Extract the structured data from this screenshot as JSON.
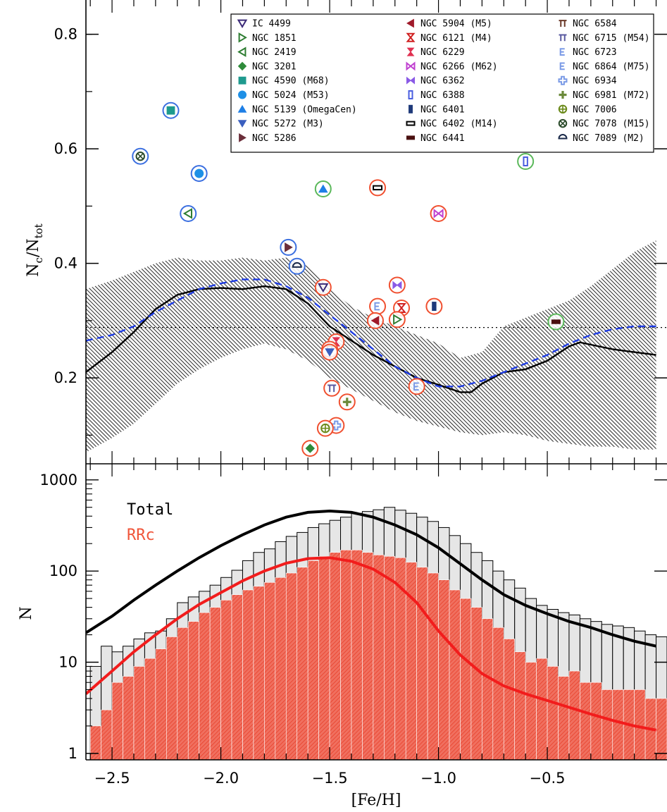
{
  "chart_data": [
    {
      "panel": "top",
      "type": "scatter",
      "xlabel": "[Fe/H]",
      "ylabel_main": "N",
      "ylabel_sub1": "c",
      "ylabel_mid": "/N",
      "ylabel_sub2": "tot",
      "xlim": [
        -2.62,
        0.05
      ],
      "ylim": [
        0.05,
        0.85
      ],
      "yticks": [
        "0.2",
        "0.4",
        "0.6",
        "0.8"
      ],
      "yticks_values": [
        0.2,
        0.4,
        0.6,
        0.8
      ],
      "reference_line": 0.288,
      "curve_solid": {
        "x": [
          -2.62,
          -2.5,
          -2.4,
          -2.3,
          -2.2,
          -2.1,
          -2.0,
          -1.9,
          -1.8,
          -1.7,
          -1.6,
          -1.5,
          -1.4,
          -1.3,
          -1.2,
          -1.1,
          -1.0,
          -0.9,
          -0.85,
          -0.8,
          -0.7,
          -0.6,
          -0.5,
          -0.4,
          -0.35,
          -0.3,
          -0.2,
          -0.1,
          0.0
        ],
        "y": [
          0.21,
          0.245,
          0.28,
          0.32,
          0.345,
          0.355,
          0.357,
          0.355,
          0.36,
          0.355,
          0.33,
          0.29,
          0.265,
          0.24,
          0.22,
          0.2,
          0.188,
          0.175,
          0.175,
          0.19,
          0.21,
          0.215,
          0.23,
          0.255,
          0.262,
          0.258,
          0.25,
          0.245,
          0.24
        ]
      },
      "curve_dashed": {
        "x": [
          -2.62,
          -2.5,
          -2.4,
          -2.3,
          -2.2,
          -2.1,
          -2.0,
          -1.9,
          -1.8,
          -1.7,
          -1.6,
          -1.5,
          -1.4,
          -1.3,
          -1.2,
          -1.1,
          -1.0,
          -0.9,
          -0.8,
          -0.7,
          -0.6,
          -0.5,
          -0.4,
          -0.3,
          -0.2,
          -0.1,
          0.0
        ],
        "y": [
          0.265,
          0.275,
          0.29,
          0.315,
          0.335,
          0.355,
          0.365,
          0.372,
          0.372,
          0.36,
          0.34,
          0.31,
          0.28,
          0.25,
          0.22,
          0.2,
          0.185,
          0.185,
          0.195,
          0.21,
          0.225,
          0.24,
          0.26,
          0.275,
          0.285,
          0.29,
          0.29
        ]
      },
      "band": {
        "x": [
          -2.62,
          -2.5,
          -2.4,
          -2.3,
          -2.2,
          -2.1,
          -2.0,
          -1.9,
          -1.8,
          -1.7,
          -1.6,
          -1.5,
          -1.4,
          -1.3,
          -1.2,
          -1.1,
          -1.0,
          -0.9,
          -0.8,
          -0.7,
          -0.6,
          -0.5,
          -0.4,
          -0.3,
          -0.2,
          -0.1,
          0.0
        ],
        "upper": [
          0.355,
          0.37,
          0.385,
          0.4,
          0.41,
          0.405,
          0.405,
          0.41,
          0.405,
          0.41,
          0.395,
          0.355,
          0.325,
          0.305,
          0.29,
          0.275,
          0.26,
          0.235,
          0.245,
          0.29,
          0.305,
          0.32,
          0.335,
          0.36,
          0.39,
          0.42,
          0.44
        ],
        "lower": [
          0.07,
          0.095,
          0.12,
          0.155,
          0.19,
          0.215,
          0.235,
          0.25,
          0.26,
          0.25,
          0.23,
          0.2,
          0.18,
          0.16,
          0.14,
          0.125,
          0.115,
          0.105,
          0.1,
          0.105,
          0.1,
          0.09,
          0.085,
          0.08,
          0.08,
          0.075,
          0.075
        ]
      },
      "legend": [
        {
          "label": "IC 4499",
          "marker": "tri-down-open",
          "color": "#3b2a78"
        },
        {
          "label": "NGC 1851",
          "marker": "tri-right-open",
          "color": "#2e7d32"
        },
        {
          "label": "NGC 2419",
          "marker": "tri-left-open",
          "color": "#2e7d32"
        },
        {
          "label": "NGC 3201",
          "marker": "diamond",
          "color": "#2e8b3a"
        },
        {
          "label": "NGC 4590 (M68)",
          "marker": "square",
          "color": "#1e9a8e"
        },
        {
          "label": "NGC 5024 (M53)",
          "marker": "circle",
          "color": "#1e90e6"
        },
        {
          "label": "NGC 5139 (OmegaCen)",
          "marker": "tri-up",
          "color": "#1e7fe6"
        },
        {
          "label": "NGC 5272 (M3)",
          "marker": "tri-down",
          "color": "#3b5fbf"
        },
        {
          "label": "NGC 5286",
          "marker": "tri-right",
          "color": "#6b2e3a"
        },
        {
          "label": "NGC 5904 (M5)",
          "marker": "tri-left",
          "color": "#a01a2a"
        },
        {
          "label": "NGC 6121 (M4)",
          "marker": "hourglass-open",
          "color": "#d02020"
        },
        {
          "label": "NGC 6229",
          "marker": "hourglass",
          "color": "#e03050"
        },
        {
          "label": "NGC 6266 (M62)",
          "marker": "bowtie-open",
          "color": "#c040d0"
        },
        {
          "label": "NGC 6362",
          "marker": "bowtie",
          "color": "#8a5ae6"
        },
        {
          "label": "NGC 6388",
          "marker": "rect-tall-open",
          "color": "#4a5ee0"
        },
        {
          "label": "NGC 6401",
          "marker": "rect-tall",
          "color": "#1f3a7a"
        },
        {
          "label": "NGC 6402 (M14)",
          "marker": "rect-wide-open",
          "color": "#000000"
        },
        {
          "label": "NGC 6441",
          "marker": "rect-wide",
          "color": "#4a1010"
        },
        {
          "label": "NGC 6584",
          "marker": "pi",
          "color": "#6b3a2a"
        },
        {
          "label": "NGC 6715 (M54)",
          "marker": "pi",
          "color": "#5a5aa0"
        },
        {
          "label": "NGC 6723",
          "marker": "bracket-open",
          "color": "#7a9ae6"
        },
        {
          "label": "NGC 6864 (M75)",
          "marker": "bracket-open",
          "color": "#7a9ae6"
        },
        {
          "label": "NGC 6934",
          "marker": "cross-open",
          "color": "#7a9ae6"
        },
        {
          "label": "NGC 6981 (M72)",
          "marker": "cross",
          "color": "#6b8a3a"
        },
        {
          "label": "NGC 7006",
          "marker": "circle-plus",
          "color": "#6b8a1a"
        },
        {
          "label": "NGC 7078 (M15)",
          "marker": "circle-x",
          "color": "#2a4a2a"
        },
        {
          "label": "NGC 7089 (M2)",
          "marker": "half-circle",
          "color": "#1a2a4a"
        }
      ],
      "points": [
        {
          "name": "NGC 4590 (M68)",
          "x": -2.23,
          "y": 0.667,
          "ring": "#3b6fe0"
        },
        {
          "name": "NGC 7078 (M15)",
          "x": -2.37,
          "y": 0.587,
          "ring": "#3b6fe0"
        },
        {
          "name": "NGC 5024 (M53)",
          "x": -2.1,
          "y": 0.557,
          "ring": "#3b6fe0"
        },
        {
          "name": "NGC 2419",
          "x": -2.15,
          "y": 0.487,
          "ring": "#3b6fe0"
        },
        {
          "name": "NGC 5139 (OmegaCen)",
          "x": -1.53,
          "y": 0.53,
          "ring": "#5ab85a"
        },
        {
          "name": "NGC 6402 (M14)",
          "x": -1.28,
          "y": 0.532,
          "ring": "#f05030"
        },
        {
          "name": "NGC 6388",
          "x": -0.6,
          "y": 0.578,
          "ring": "#5ab85a"
        },
        {
          "name": "NGC 6266 (M62)",
          "x": -1.0,
          "y": 0.487,
          "ring": "#f05030"
        },
        {
          "name": "NGC 5286",
          "x": -1.69,
          "y": 0.428,
          "ring": "#3b6fe0"
        },
        {
          "name": "NGC 7089 (M2)",
          "x": -1.65,
          "y": 0.395,
          "ring": "#3b6fe0"
        },
        {
          "name": "IC 4499",
          "x": -1.53,
          "y": 0.358,
          "ring": "#f05030"
        },
        {
          "name": "NGC 6362",
          "x": -1.19,
          "y": 0.362,
          "ring": "#f05030"
        },
        {
          "name": "NGC 6723",
          "x": -1.28,
          "y": 0.325,
          "ring": "#f05030"
        },
        {
          "name": "NGC 6121 (M4)",
          "x": -1.17,
          "y": 0.322,
          "ring": "#f05030"
        },
        {
          "name": "NGC 6401",
          "x": -1.02,
          "y": 0.325,
          "ring": "#f05030"
        },
        {
          "name": "NGC 5904 (M5)",
          "x": -1.29,
          "y": 0.3,
          "ring": "#f05030"
        },
        {
          "name": "NGC 1851",
          "x": -1.19,
          "y": 0.302,
          "ring": "#f05030"
        },
        {
          "name": "NGC 6441",
          "x": -0.46,
          "y": 0.298,
          "ring": "#5ab85a"
        },
        {
          "name": "NGC 6229",
          "x": -1.47,
          "y": 0.263,
          "ring": "#f05030"
        },
        {
          "name": "NGC 6584",
          "x": -1.5,
          "y": 0.25,
          "ring": "#f05030"
        },
        {
          "name": "NGC 5272 (M3)",
          "x": -1.5,
          "y": 0.245,
          "ring": "#f05030"
        },
        {
          "name": "NGC 6864 (M75)",
          "x": -1.1,
          "y": 0.185,
          "ring": "#f05030"
        },
        {
          "name": "NGC 6715 (M54)",
          "x": -1.49,
          "y": 0.182,
          "ring": "#f05030"
        },
        {
          "name": "NGC 6981 (M72)",
          "x": -1.42,
          "y": 0.158,
          "ring": "#f05030"
        },
        {
          "name": "NGC 6934",
          "x": -1.47,
          "y": 0.117,
          "ring": "#f05030"
        },
        {
          "name": "NGC 7006",
          "x": -1.52,
          "y": 0.112,
          "ring": "#f05030"
        },
        {
          "name": "NGC 3201",
          "x": -1.59,
          "y": 0.077,
          "ring": "#f05030"
        }
      ]
    },
    {
      "panel": "bottom",
      "type": "bar",
      "xlabel": "[Fe/H]",
      "ylabel": "N",
      "ylog": true,
      "ylim": [
        0.85,
        1500
      ],
      "xlim": [
        -2.62,
        0.05
      ],
      "yticks": [
        "1",
        "10",
        "100",
        "1000"
      ],
      "yticks_values": [
        1,
        10,
        100,
        1000
      ],
      "xticks": [
        "−2.5",
        "−2.0",
        "−1.5",
        "−1.0",
        "−0.5"
      ],
      "xticks_values": [
        -2.5,
        -2.0,
        -1.5,
        -1.0,
        -0.5
      ],
      "legend": [
        {
          "label": "Total",
          "color": "#000000"
        },
        {
          "label": "RRc",
          "color": "#f0553a"
        }
      ],
      "bin_start": -2.6,
      "bin_width": 0.05,
      "total": [
        9,
        15,
        13,
        15,
        18,
        21,
        22,
        30,
        45,
        52,
        60,
        70,
        85,
        102,
        130,
        160,
        175,
        210,
        240,
        265,
        300,
        330,
        360,
        390,
        430,
        450,
        470,
        500,
        465,
        430,
        390,
        350,
        300,
        245,
        200,
        160,
        130,
        100,
        80,
        65,
        50,
        42,
        38,
        35,
        33,
        30,
        28,
        26,
        25,
        24,
        22,
        20,
        19
      ],
      "rrc": [
        2,
        3,
        6,
        7,
        9,
        11,
        14,
        19,
        24,
        28,
        35,
        40,
        48,
        55,
        62,
        68,
        75,
        85,
        95,
        110,
        130,
        145,
        160,
        170,
        170,
        160,
        150,
        145,
        140,
        125,
        110,
        95,
        80,
        62,
        50,
        40,
        30,
        24,
        18,
        13,
        10,
        11,
        9,
        7,
        8,
        6,
        6,
        5,
        5,
        5,
        5,
        4,
        4
      ],
      "fit_total": {
        "x": [
          -2.62,
          -2.5,
          -2.4,
          -2.3,
          -2.2,
          -2.1,
          -2.0,
          -1.9,
          -1.8,
          -1.7,
          -1.6,
          -1.5,
          -1.4,
          -1.3,
          -1.2,
          -1.1,
          -1.0,
          -0.9,
          -0.8,
          -0.7,
          -0.6,
          -0.5,
          -0.4,
          -0.3,
          -0.2,
          -0.1,
          0.0
        ],
        "y": [
          21,
          32,
          48,
          70,
          100,
          140,
          190,
          250,
          320,
          390,
          440,
          455,
          440,
          390,
          320,
          250,
          180,
          120,
          80,
          55,
          42,
          34,
          28,
          24,
          20,
          17,
          15
        ]
      },
      "fit_rrc": {
        "x": [
          -2.62,
          -2.5,
          -2.4,
          -2.3,
          -2.2,
          -2.1,
          -2.0,
          -1.9,
          -1.8,
          -1.7,
          -1.6,
          -1.5,
          -1.4,
          -1.3,
          -1.2,
          -1.1,
          -1.0,
          -0.9,
          -0.8,
          -0.7,
          -0.6,
          -0.5,
          -0.4,
          -0.3,
          -0.2,
          -0.1,
          0.0
        ],
        "y": [
          4.5,
          8,
          13,
          20,
          30,
          43,
          58,
          78,
          100,
          122,
          137,
          140,
          128,
          105,
          75,
          45,
          22,
          12,
          7.5,
          5.5,
          4.5,
          3.8,
          3.2,
          2.7,
          2.3,
          2.0,
          1.8
        ]
      }
    }
  ]
}
